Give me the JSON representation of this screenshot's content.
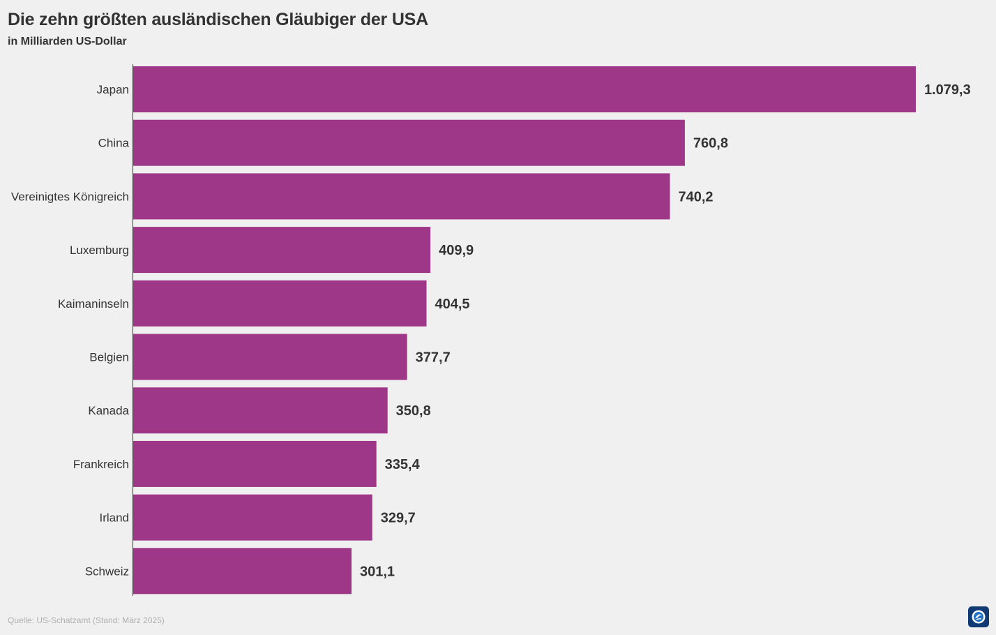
{
  "title": "Die zehn größten ausländischen Gläubiger der USA",
  "subtitle": "in Milliarden US-Dollar",
  "source": "Quelle: US-Schatzamt (Stand: März 2025)",
  "colors": {
    "bar": "#9e3787",
    "background": "#f0f0f0",
    "text": "#333333",
    "source_text": "#b0b0b0",
    "axis": "#333333",
    "logo_bg": "#0f3a73"
  },
  "logo_icon": "broadcaster-logo-icon",
  "chart_data": {
    "type": "bar",
    "orientation": "horizontal",
    "title": "Die zehn größten ausländischen Gläubiger der USA",
    "subtitle": "in Milliarden US-Dollar",
    "categories": [
      "Japan",
      "China",
      "Vereinigtes Königreich",
      "Luxemburg",
      "Kaimaninseln",
      "Belgien",
      "Kanada",
      "Frankreich",
      "Irland",
      "Schweiz"
    ],
    "values": [
      1079.3,
      760.8,
      740.2,
      409.9,
      404.5,
      377.7,
      350.8,
      335.4,
      329.7,
      301.1
    ],
    "value_labels": [
      "1.079,3",
      "760,8",
      "740,2",
      "409,9",
      "404,5",
      "377,7",
      "350,8",
      "335,4",
      "329,7",
      "301,1"
    ],
    "xlim": [
      0,
      1079.3
    ],
    "grid": false,
    "legend": "none"
  }
}
